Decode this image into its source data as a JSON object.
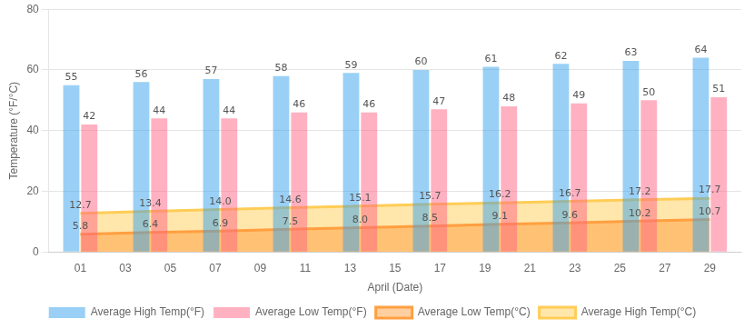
{
  "chart_data": {
    "type": "bar",
    "xlabel": "April (Date)",
    "ylabel": "Temperature (°F/°C)",
    "series": [
      {
        "name": "Average High Temp(°F)",
        "type": "bar",
        "values": [
          55,
          56,
          57,
          58,
          59,
          60,
          61,
          62,
          63,
          64
        ]
      },
      {
        "name": "Average Low Temp(°F)",
        "type": "bar",
        "values": [
          42,
          44,
          44,
          46,
          46,
          47,
          48,
          49,
          50,
          51
        ]
      },
      {
        "name": "Average Low Temp(°C)",
        "type": "area",
        "values": [
          5.8,
          6.4,
          6.9,
          7.5,
          8.0,
          8.5,
          9.1,
          9.6,
          10.2,
          10.7
        ],
        "value_labels": [
          "5.8",
          "6.4",
          "6.9",
          "7.5",
          "8.0",
          "8.5",
          "9.1",
          "9.6",
          "10.2",
          "10.7"
        ]
      },
      {
        "name": "Average High Temp(°C)",
        "type": "area",
        "values": [
          12.7,
          13.4,
          14.0,
          14.6,
          15.1,
          15.7,
          16.2,
          16.7,
          17.2,
          17.7
        ],
        "value_labels": [
          "12.7",
          "13.4",
          "14.0",
          "14.6",
          "15.1",
          "15.7",
          "16.2",
          "16.7",
          "17.2",
          "17.7"
        ]
      }
    ],
    "xlim": [
      -0.4,
      30.4
    ],
    "xticks": [
      {
        "value": 1,
        "label": "01"
      },
      {
        "value": 3,
        "label": "03"
      },
      {
        "value": 5,
        "label": "05"
      },
      {
        "value": 7,
        "label": "07"
      },
      {
        "value": 9,
        "label": "09"
      },
      {
        "value": 11,
        "label": "11"
      },
      {
        "value": 13,
        "label": "13"
      },
      {
        "value": 15,
        "label": "15"
      },
      {
        "value": 17,
        "label": "17"
      },
      {
        "value": 19,
        "label": "19"
      },
      {
        "value": 21,
        "label": "21"
      },
      {
        "value": 23,
        "label": "23"
      },
      {
        "value": 25,
        "label": "25"
      },
      {
        "value": 27,
        "label": "27"
      },
      {
        "value": 29,
        "label": "29"
      }
    ],
    "ylim": [
      0,
      80
    ],
    "yticks": [
      0,
      20,
      40,
      60,
      80
    ],
    "grid": true,
    "legend": "bottom",
    "data_labels": true
  }
}
